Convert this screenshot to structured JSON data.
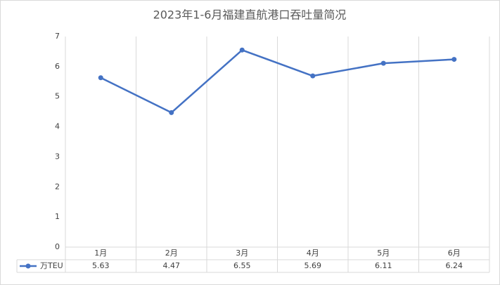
{
  "chart_data": {
    "type": "line",
    "title": "2023年1-6月福建直航港口吞吐量简况",
    "categories": [
      "1月",
      "2月",
      "3月",
      "4月",
      "5月",
      "6月"
    ],
    "series": [
      {
        "name": "万TEU",
        "color": "#4472c4",
        "values": [
          5.63,
          4.47,
          6.55,
          5.69,
          6.11,
          6.24
        ]
      }
    ],
    "ylim": [
      0,
      7
    ],
    "yticks": [
      0,
      1,
      2,
      3,
      4,
      5,
      6,
      7
    ]
  }
}
